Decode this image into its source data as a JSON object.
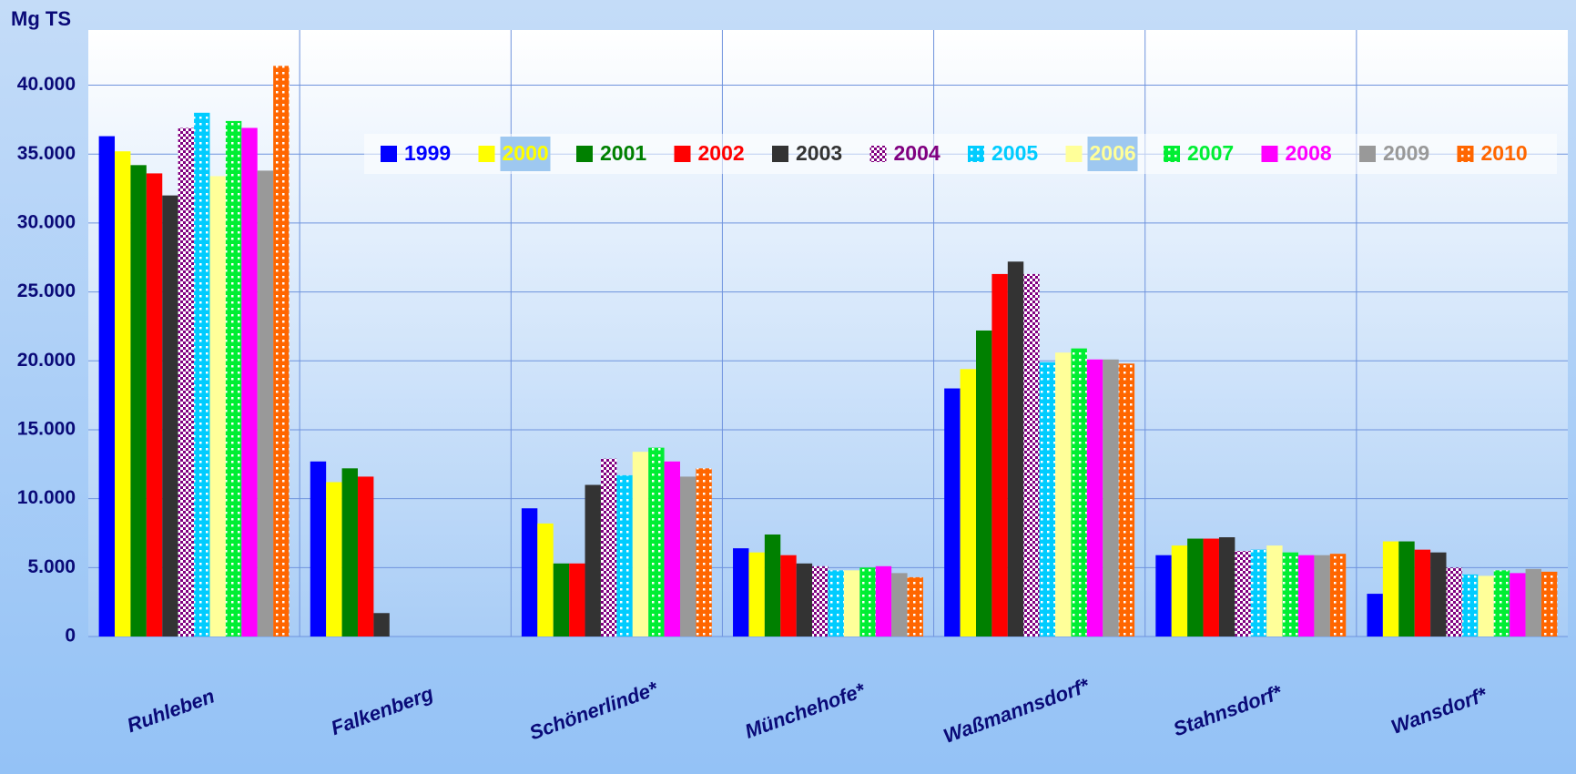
{
  "chart_data": {
    "type": "bar",
    "y_label": "Mg TS",
    "categories": [
      "Ruhleben",
      "Falkenberg",
      "Schönerlinde*",
      "Münchehofe*",
      "Waßmannsdorf*",
      "Stahnsdorf*",
      "Wansdorf*"
    ],
    "ylim": [
      0,
      44000
    ],
    "yticks": [
      0,
      {
        "value": 5000,
        "label": "5.000"
      },
      {
        "value": 10000,
        "label": "10.000"
      },
      {
        "value": 15000,
        "label": "15.000"
      },
      {
        "value": 20000,
        "label": "20.000"
      },
      {
        "value": 25000,
        "label": "25.000"
      },
      {
        "value": 30000,
        "label": "30.000"
      },
      {
        "value": 35000,
        "label": "35.000"
      },
      {
        "value": 40000,
        "label": "40.000"
      }
    ],
    "grid": true,
    "legend": "top",
    "series": [
      {
        "name": "1999",
        "color": "#0000ff",
        "values": [
          36300,
          12700,
          9300,
          6400,
          18000,
          5900,
          3100
        ]
      },
      {
        "name": "2000",
        "color": "#ffff00",
        "values": [
          35200,
          11200,
          8200,
          6100,
          19400,
          6600,
          6900
        ]
      },
      {
        "name": "2001",
        "color": "#008000",
        "values": [
          34200,
          12200,
          5300,
          7400,
          22200,
          7100,
          6900
        ]
      },
      {
        "name": "2002",
        "color": "#ff0000",
        "values": [
          33600,
          11600,
          5300,
          5900,
          26300,
          7100,
          6300
        ]
      },
      {
        "name": "2003",
        "color": "#333333",
        "values": [
          32000,
          1700,
          11000,
          5300,
          27200,
          7200,
          6100
        ]
      },
      {
        "name": "2004",
        "color": "#800080",
        "pattern": "checker",
        "values": [
          36900,
          null,
          12900,
          5100,
          26300,
          6200,
          5000
        ]
      },
      {
        "name": "2005",
        "color": "#00ccff",
        "pattern": "dots",
        "values": [
          38000,
          null,
          11700,
          4800,
          19900,
          6300,
          4500
        ]
      },
      {
        "name": "2006",
        "color": "#ffff99",
        "values": [
          33400,
          null,
          13400,
          4800,
          20600,
          6600,
          4400
        ]
      },
      {
        "name": "2007",
        "color": "#00ee33",
        "pattern": "dots",
        "values": [
          37400,
          null,
          13700,
          5000,
          20900,
          6100,
          4800
        ]
      },
      {
        "name": "2008",
        "color": "#ff00ff",
        "values": [
          36900,
          null,
          12700,
          5100,
          20100,
          5900,
          4600
        ]
      },
      {
        "name": "2009",
        "color": "#999999",
        "values": [
          33800,
          null,
          11600,
          4600,
          20100,
          5900,
          4900
        ]
      },
      {
        "name": "2010",
        "color": "#ff6600",
        "pattern": "dots",
        "values": [
          41400,
          null,
          12200,
          4300,
          19800,
          6000,
          4700
        ]
      }
    ]
  }
}
